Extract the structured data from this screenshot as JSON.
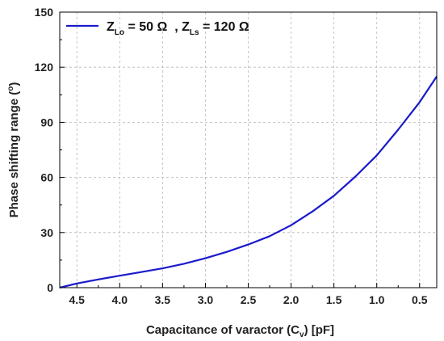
{
  "chart_data": {
    "type": "line",
    "xlabel": {
      "main": "Capacitance of varactor (C",
      "sub": "v",
      "tail": ") [pF]"
    },
    "ylabel": {
      "main": "Phase shifting range (",
      "sup": "o",
      "tail": ")"
    },
    "x_reversed": true,
    "xlim": [
      4.7,
      0.3
    ],
    "ylim": [
      0,
      150
    ],
    "x_ticks": [
      {
        "value": 4.5,
        "label": "4.5"
      },
      {
        "value": 4.0,
        "label": "4.0"
      },
      {
        "value": 3.5,
        "label": "3.5"
      },
      {
        "value": 3.0,
        "label": "3.0"
      },
      {
        "value": 2.5,
        "label": "2.5"
      },
      {
        "value": 2.0,
        "label": "2.0"
      },
      {
        "value": 1.5,
        "label": "1.5"
      },
      {
        "value": 1.0,
        "label": "1.0"
      },
      {
        "value": 0.5,
        "label": "0.5"
      }
    ],
    "y_ticks": [
      {
        "value": 0,
        "label": "0"
      },
      {
        "value": 30,
        "label": "30"
      },
      {
        "value": 60,
        "label": "60"
      },
      {
        "value": 90,
        "label": "90"
      },
      {
        "value": 120,
        "label": "120"
      },
      {
        "value": 150,
        "label": "150"
      }
    ],
    "grid": true,
    "legend_position": "top-left",
    "legend": {
      "z": "Z",
      "sub_lo": "Lo",
      "mid": " = 50 Ω  , ",
      "sub_ls": "Ls",
      "tail": " = 120 Ω"
    },
    "series": [
      {
        "color": "#1a1acc",
        "x": [
          4.7,
          4.5,
          4.25,
          4.0,
          3.75,
          3.5,
          3.25,
          3.0,
          2.75,
          2.5,
          2.25,
          2.0,
          1.75,
          1.5,
          1.25,
          1.0,
          0.75,
          0.5,
          0.3
        ],
        "y": [
          0,
          2.3,
          4.5,
          6.5,
          8.5,
          10.5,
          13.0,
          16.0,
          19.5,
          23.5,
          28.0,
          34.0,
          41.5,
          50.0,
          60.5,
          72.0,
          86.0,
          101.0,
          115.0
        ]
      }
    ]
  }
}
